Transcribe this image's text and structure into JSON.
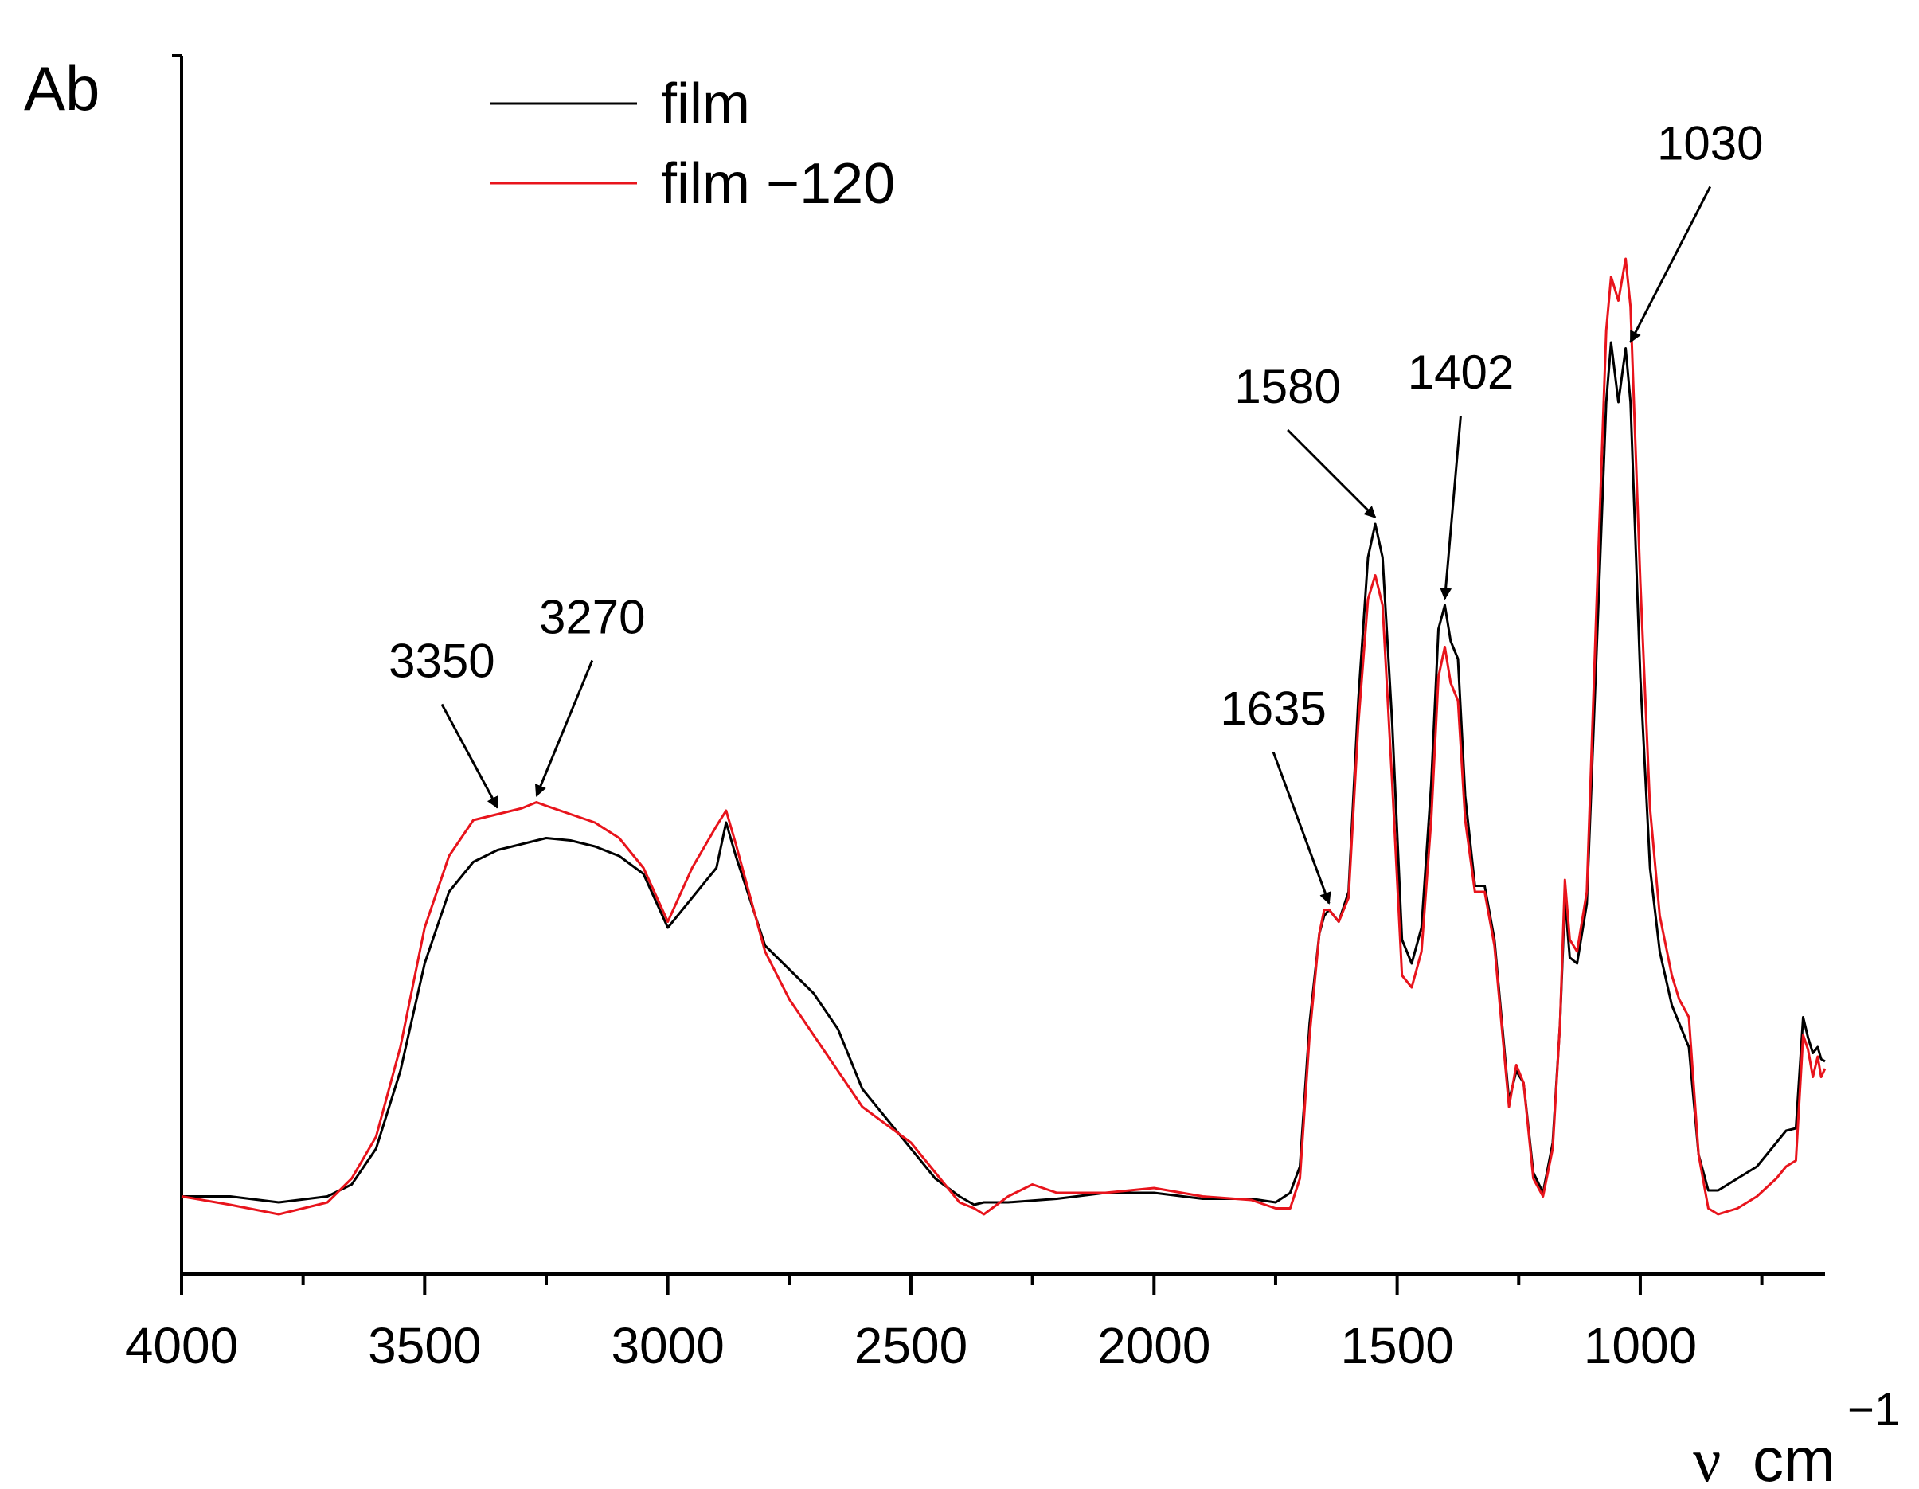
{
  "chart_data": {
    "type": "line",
    "title": "",
    "ylabel": "Ab",
    "xlabel": {
      "symbol": "ν",
      "unit": "cm",
      "exponent": "−1"
    },
    "xlim": [
      4000,
      620
    ],
    "ylim": [
      0,
      1
    ],
    "x_reversed": true,
    "grid": false,
    "legend_position": "top-left",
    "x_ticks": [
      {
        "value": 4000,
        "label": "4000"
      },
      {
        "value": 3500,
        "label": "3500"
      },
      {
        "value": 3000,
        "label": "3000"
      },
      {
        "value": 2500,
        "label": "2500"
      },
      {
        "value": 2000,
        "label": "2000"
      },
      {
        "value": 1500,
        "label": "1500"
      },
      {
        "value": 1000,
        "label": "1000"
      }
    ],
    "x_minor_ticks": [
      3750,
      3250,
      2750,
      2250,
      1750,
      1250,
      750
    ],
    "series": [
      {
        "name": "film",
        "color": "#000000",
        "points": [
          [
            4000,
            0.105
          ],
          [
            3900,
            0.105
          ],
          [
            3800,
            0.1
          ],
          [
            3700,
            0.105
          ],
          [
            3650,
            0.115
          ],
          [
            3600,
            0.145
          ],
          [
            3550,
            0.21
          ],
          [
            3500,
            0.3
          ],
          [
            3450,
            0.36
          ],
          [
            3400,
            0.385
          ],
          [
            3350,
            0.395
          ],
          [
            3300,
            0.4
          ],
          [
            3250,
            0.405
          ],
          [
            3200,
            0.403
          ],
          [
            3150,
            0.398
          ],
          [
            3100,
            0.39
          ],
          [
            3050,
            0.375
          ],
          [
            3000,
            0.33
          ],
          [
            2950,
            0.355
          ],
          [
            2900,
            0.38
          ],
          [
            2880,
            0.418
          ],
          [
            2860,
            0.39
          ],
          [
            2800,
            0.315
          ],
          [
            2750,
            0.295
          ],
          [
            2700,
            0.275
          ],
          [
            2650,
            0.245
          ],
          [
            2600,
            0.195
          ],
          [
            2550,
            0.17
          ],
          [
            2500,
            0.145
          ],
          [
            2450,
            0.12
          ],
          [
            2400,
            0.105
          ],
          [
            2370,
            0.098
          ],
          [
            2350,
            0.1
          ],
          [
            2300,
            0.1
          ],
          [
            2200,
            0.103
          ],
          [
            2100,
            0.108
          ],
          [
            2000,
            0.108
          ],
          [
            1900,
            0.103
          ],
          [
            1800,
            0.103
          ],
          [
            1750,
            0.1
          ],
          [
            1720,
            0.108
          ],
          [
            1700,
            0.13
          ],
          [
            1680,
            0.25
          ],
          [
            1660,
            0.325
          ],
          [
            1650,
            0.34
          ],
          [
            1640,
            0.345
          ],
          [
            1620,
            0.335
          ],
          [
            1600,
            0.36
          ],
          [
            1580,
            0.52
          ],
          [
            1560,
            0.64
          ],
          [
            1545,
            0.668
          ],
          [
            1530,
            0.64
          ],
          [
            1510,
            0.5
          ],
          [
            1490,
            0.32
          ],
          [
            1470,
            0.3
          ],
          [
            1450,
            0.33
          ],
          [
            1430,
            0.45
          ],
          [
            1415,
            0.58
          ],
          [
            1402,
            0.6
          ],
          [
            1390,
            0.57
          ],
          [
            1375,
            0.555
          ],
          [
            1360,
            0.44
          ],
          [
            1340,
            0.365
          ],
          [
            1320,
            0.365
          ],
          [
            1300,
            0.32
          ],
          [
            1270,
            0.185
          ],
          [
            1255,
            0.21
          ],
          [
            1240,
            0.2
          ],
          [
            1220,
            0.125
          ],
          [
            1200,
            0.108
          ],
          [
            1180,
            0.15
          ],
          [
            1165,
            0.25
          ],
          [
            1155,
            0.355
          ],
          [
            1145,
            0.305
          ],
          [
            1130,
            0.3
          ],
          [
            1110,
            0.35
          ],
          [
            1090,
            0.56
          ],
          [
            1070,
            0.77
          ],
          [
            1060,
            0.82
          ],
          [
            1045,
            0.77
          ],
          [
            1030,
            0.815
          ],
          [
            1020,
            0.77
          ],
          [
            1000,
            0.54
          ],
          [
            980,
            0.38
          ],
          [
            960,
            0.31
          ],
          [
            935,
            0.265
          ],
          [
            920,
            0.25
          ],
          [
            900,
            0.23
          ],
          [
            880,
            0.14
          ],
          [
            860,
            0.11
          ],
          [
            840,
            0.11
          ],
          [
            800,
            0.12
          ],
          [
            760,
            0.13
          ],
          [
            720,
            0.15
          ],
          [
            700,
            0.16
          ],
          [
            680,
            0.162
          ],
          [
            665,
            0.255
          ],
          [
            655,
            0.238
          ],
          [
            645,
            0.225
          ],
          [
            635,
            0.23
          ],
          [
            628,
            0.22
          ],
          [
            620,
            0.218
          ]
        ]
      },
      {
        "name": "film −120",
        "color": "#e8141c",
        "points": [
          [
            4000,
            0.105
          ],
          [
            3900,
            0.098
          ],
          [
            3800,
            0.09
          ],
          [
            3700,
            0.1
          ],
          [
            3650,
            0.12
          ],
          [
            3600,
            0.155
          ],
          [
            3550,
            0.23
          ],
          [
            3500,
            0.33
          ],
          [
            3450,
            0.39
          ],
          [
            3400,
            0.42
          ],
          [
            3350,
            0.425
          ],
          [
            3300,
            0.43
          ],
          [
            3270,
            0.435
          ],
          [
            3250,
            0.432
          ],
          [
            3200,
            0.425
          ],
          [
            3150,
            0.418
          ],
          [
            3100,
            0.405
          ],
          [
            3050,
            0.38
          ],
          [
            3000,
            0.335
          ],
          [
            2950,
            0.38
          ],
          [
            2900,
            0.415
          ],
          [
            2880,
            0.428
          ],
          [
            2860,
            0.4
          ],
          [
            2800,
            0.31
          ],
          [
            2750,
            0.27
          ],
          [
            2700,
            0.24
          ],
          [
            2650,
            0.21
          ],
          [
            2600,
            0.18
          ],
          [
            2550,
            0.165
          ],
          [
            2500,
            0.15
          ],
          [
            2450,
            0.125
          ],
          [
            2400,
            0.1
          ],
          [
            2370,
            0.095
          ],
          [
            2350,
            0.09
          ],
          [
            2300,
            0.105
          ],
          [
            2250,
            0.115
          ],
          [
            2200,
            0.108
          ],
          [
            2100,
            0.108
          ],
          [
            2000,
            0.112
          ],
          [
            1900,
            0.105
          ],
          [
            1800,
            0.102
          ],
          [
            1750,
            0.095
          ],
          [
            1720,
            0.095
          ],
          [
            1700,
            0.12
          ],
          [
            1680,
            0.24
          ],
          [
            1660,
            0.325
          ],
          [
            1650,
            0.345
          ],
          [
            1640,
            0.345
          ],
          [
            1620,
            0.335
          ],
          [
            1600,
            0.355
          ],
          [
            1580,
            0.5
          ],
          [
            1560,
            0.605
          ],
          [
            1545,
            0.625
          ],
          [
            1530,
            0.6
          ],
          [
            1510,
            0.45
          ],
          [
            1490,
            0.29
          ],
          [
            1470,
            0.28
          ],
          [
            1450,
            0.31
          ],
          [
            1430,
            0.42
          ],
          [
            1415,
            0.54
          ],
          [
            1402,
            0.565
          ],
          [
            1390,
            0.535
          ],
          [
            1375,
            0.52
          ],
          [
            1360,
            0.42
          ],
          [
            1340,
            0.36
          ],
          [
            1320,
            0.36
          ],
          [
            1300,
            0.315
          ],
          [
            1270,
            0.18
          ],
          [
            1255,
            0.215
          ],
          [
            1240,
            0.2
          ],
          [
            1220,
            0.12
          ],
          [
            1200,
            0.105
          ],
          [
            1180,
            0.145
          ],
          [
            1165,
            0.25
          ],
          [
            1155,
            0.37
          ],
          [
            1145,
            0.32
          ],
          [
            1130,
            0.31
          ],
          [
            1110,
            0.36
          ],
          [
            1090,
            0.6
          ],
          [
            1070,
            0.83
          ],
          [
            1060,
            0.875
          ],
          [
            1045,
            0.855
          ],
          [
            1030,
            0.89
          ],
          [
            1020,
            0.85
          ],
          [
            1000,
            0.62
          ],
          [
            980,
            0.43
          ],
          [
            960,
            0.34
          ],
          [
            935,
            0.29
          ],
          [
            920,
            0.27
          ],
          [
            900,
            0.255
          ],
          [
            880,
            0.14
          ],
          [
            860,
            0.095
          ],
          [
            840,
            0.09
          ],
          [
            800,
            0.095
          ],
          [
            760,
            0.105
          ],
          [
            720,
            0.12
          ],
          [
            700,
            0.13
          ],
          [
            680,
            0.135
          ],
          [
            665,
            0.24
          ],
          [
            655,
            0.228
          ],
          [
            645,
            0.205
          ],
          [
            635,
            0.222
          ],
          [
            628,
            0.205
          ],
          [
            620,
            0.212
          ]
        ]
      }
    ],
    "annotations": [
      {
        "label": "3350",
        "x": 3350,
        "y": 0.425
      },
      {
        "label": "3270",
        "x": 3270,
        "y": 0.435
      },
      {
        "label": "1635",
        "x": 1640,
        "y": 0.345
      },
      {
        "label": "1580",
        "x": 1545,
        "y": 0.668
      },
      {
        "label": "1402",
        "x": 1402,
        "y": 0.6
      },
      {
        "label": "1030",
        "x": 1020,
        "y": 0.815
      }
    ]
  }
}
